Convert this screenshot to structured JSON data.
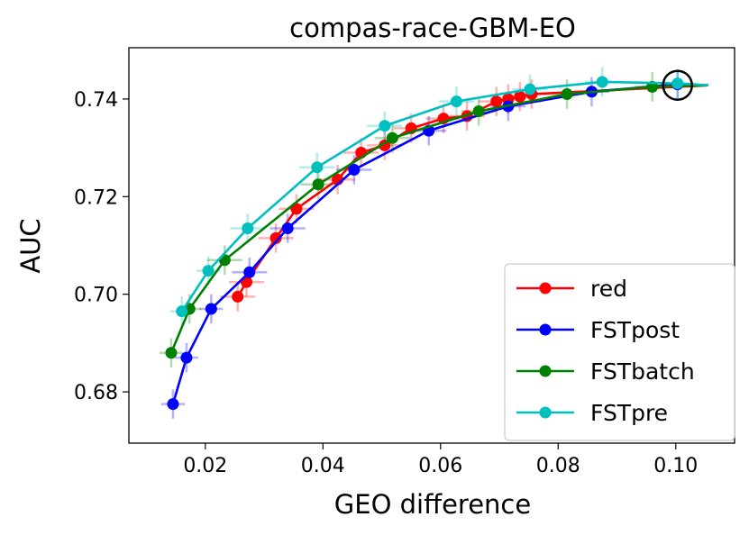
{
  "chart_data": {
    "type": "line",
    "title": "compas-race-GBM-EO",
    "xlabel": "GEO difference",
    "ylabel": "AUC",
    "xlim": [
      0.007,
      0.11
    ],
    "ylim": [
      0.6695,
      0.7505
    ],
    "xticks": [
      0.02,
      0.04,
      0.06,
      0.08,
      0.1
    ],
    "xtick_labels": [
      "0.02",
      "0.04",
      "0.06",
      "0.08",
      "0.10"
    ],
    "yticks": [
      0.68,
      0.7,
      0.72,
      0.74
    ],
    "ytick_labels": [
      "0.68",
      "0.70",
      "0.72",
      "0.74"
    ],
    "legend_position": "bottom-right",
    "series": [
      {
        "name": "red",
        "color": "#ff0000",
        "x": [
          0.0255,
          0.027,
          0.032,
          0.0355,
          0.0425,
          0.0465,
          0.0505,
          0.055,
          0.0605,
          0.0645,
          0.0695,
          0.0715,
          0.0735,
          0.0755
        ],
        "y": [
          0.6995,
          0.7025,
          0.7115,
          0.7175,
          0.7235,
          0.729,
          0.7305,
          0.734,
          0.736,
          0.7365,
          0.7395,
          0.74,
          0.7405,
          0.741
        ],
        "xerr": [
          0.003,
          0.003,
          0.003,
          0.003,
          0.003,
          0.003,
          0.003,
          0.003,
          0.003,
          0.003,
          0.003,
          0.003,
          0.003,
          0.003
        ],
        "yerr": [
          0.003,
          0.003,
          0.003,
          0.003,
          0.003,
          0.003,
          0.003,
          0.003,
          0.003,
          0.003,
          0.003,
          0.003,
          0.003,
          0.003
        ]
      },
      {
        "name": "FSTpost",
        "color": "#0000ff",
        "x": [
          0.0145,
          0.0168,
          0.021,
          0.0275,
          0.034,
          0.0453,
          0.058,
          0.0715,
          0.0857,
          0.1003
        ],
        "y": [
          0.6775,
          0.687,
          0.697,
          0.7045,
          0.7135,
          0.7255,
          0.7335,
          0.7385,
          0.7415,
          0.743
        ],
        "xerr": [
          0.002,
          0.002,
          0.002,
          0.003,
          0.003,
          0.003,
          0.003,
          0.003,
          0.003,
          0.003
        ],
        "yerr": [
          0.003,
          0.003,
          0.003,
          0.003,
          0.003,
          0.003,
          0.003,
          0.003,
          0.003,
          0.003
        ]
      },
      {
        "name": "FSTbatch",
        "color": "#008000",
        "x": [
          0.0142,
          0.0173,
          0.0233,
          0.0392,
          0.0518,
          0.0665,
          0.0815,
          0.096
        ],
        "y": [
          0.688,
          0.697,
          0.707,
          0.7225,
          0.732,
          0.7375,
          0.741,
          0.7425
        ],
        "xerr": [
          0.002,
          0.002,
          0.003,
          0.003,
          0.003,
          0.003,
          0.003,
          0.003
        ],
        "yerr": [
          0.003,
          0.003,
          0.003,
          0.003,
          0.003,
          0.003,
          0.003,
          0.003
        ]
      },
      {
        "name": "FSTpre",
        "color": "#00bfbf",
        "x": [
          0.016,
          0.0205,
          0.0272,
          0.039,
          0.0505,
          0.0627,
          0.0752,
          0.0875,
          0.1003
        ],
        "y": [
          0.6965,
          0.7048,
          0.7135,
          0.726,
          0.7345,
          0.7395,
          0.742,
          0.7435,
          0.7432
        ],
        "xerr": [
          0.002,
          0.002,
          0.003,
          0.003,
          0.003,
          0.003,
          0.003,
          0.003,
          0.003
        ],
        "yerr": [
          0.003,
          0.003,
          0.003,
          0.003,
          0.003,
          0.003,
          0.003,
          0.003,
          0.003
        ]
      }
    ],
    "baseline_tail": {
      "x_end": 0.1055,
      "y": 0.7428
    },
    "highlight": {
      "x": 0.1003,
      "y": 0.7428,
      "marker": "open-circle"
    }
  }
}
